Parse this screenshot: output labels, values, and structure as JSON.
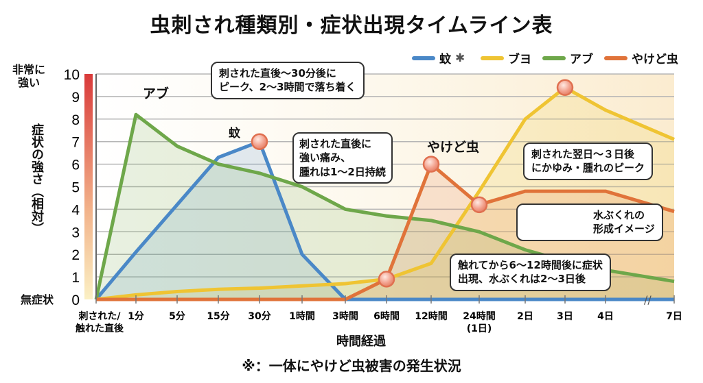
{
  "title": "虫刺され種類別・症状出現タイムライン表",
  "footnote": "※：一体にやけど虫被害の発生状況",
  "legend": [
    {
      "name": "蚊",
      "color": "#4a88c7"
    },
    {
      "name": "ブヨ",
      "color": "#efc433"
    },
    {
      "name": "アブ",
      "color": "#6ea74a"
    },
    {
      "name": "やけど虫",
      "color": "#e0733a"
    }
  ],
  "y_labels": {
    "top": "非常に\n強い",
    "bottom": "無症状",
    "title": "症状の強さ（相対）"
  },
  "series_labels": {
    "abu": "アブ",
    "ka": "蚊",
    "yakedomushi": "やけど虫"
  },
  "callouts": {
    "ka": "刺された直後〜30分後に\nピーク、2〜3時間で落ち着く",
    "abu": "刺された直後に\n強い痛み、\n腫れは1〜2日持続",
    "buyo": "刺された翌日〜３日後\nにかゆみ・腫れのピーク",
    "blister": "水ぶくれの\n形成イメージ",
    "yakedomushi": "触れてから6〜12時間後に症状\n出現、水ぶくれは2〜3日後"
  },
  "chart_data": {
    "type": "line",
    "title": "虫刺され種類別・症状出現タイムライン表",
    "xlabel": "時間経過",
    "ylabel": "症状の強さ（相対）",
    "ylim": [
      0,
      10
    ],
    "yticks": [
      0,
      1,
      2,
      3,
      4,
      5,
      6,
      7,
      8,
      9,
      10
    ],
    "grid": true,
    "legend_position": "top-right",
    "x_axis_break_before": "7日",
    "categories": [
      "刺された/\n触れた直後",
      "1分",
      "5分",
      "15分",
      "30分",
      "1時間",
      "3時間",
      "6時間",
      "12時間",
      "24時間\n(1日)",
      "2日",
      "3日",
      "4日",
      "7日"
    ],
    "series": [
      {
        "name": "蚊",
        "color": "#4a88c7",
        "values": [
          0,
          2.1,
          4.2,
          6.3,
          7.0,
          2.0,
          0,
          0,
          0,
          0,
          0,
          0,
          0,
          0
        ],
        "markers": [
          4
        ]
      },
      {
        "name": "ブヨ",
        "color": "#efc433",
        "values": [
          0,
          0.2,
          0.35,
          0.45,
          0.5,
          0.6,
          0.7,
          0.9,
          1.6,
          4.8,
          8.0,
          9.4,
          8.4,
          7.1
        ],
        "markers": [
          11
        ]
      },
      {
        "name": "アブ",
        "color": "#6ea74a",
        "values": [
          0,
          8.2,
          6.8,
          6.0,
          5.6,
          5.0,
          4.0,
          3.7,
          3.5,
          3.0,
          2.2,
          1.7,
          1.3,
          0.8
        ],
        "markers": []
      },
      {
        "name": "やけど虫",
        "color": "#e0733a",
        "values": [
          0,
          0,
          0,
          0,
          0,
          0,
          0,
          0.9,
          6.0,
          4.2,
          4.8,
          4.8,
          4.8,
          3.9
        ],
        "markers": [
          7,
          8,
          9
        ]
      }
    ]
  }
}
